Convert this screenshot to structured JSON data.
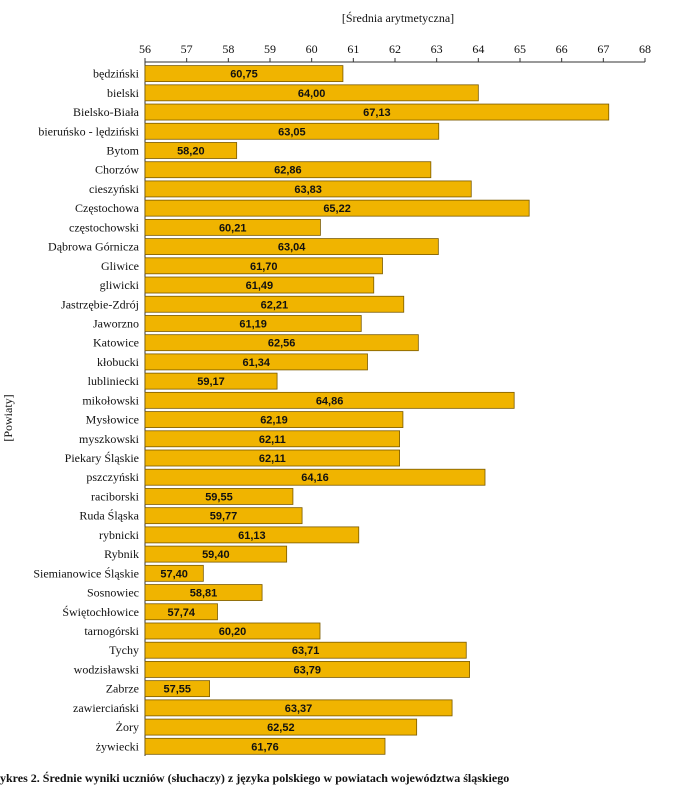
{
  "chart_data": {
    "type": "bar",
    "orientation": "horizontal",
    "title": "[Średnia arytmetyczna]",
    "xlabel": "[Średnia arytmetyczna]",
    "ylabel": "[Powiaty]",
    "xlim": [
      56,
      68
    ],
    "ticks": [
      56,
      57,
      58,
      59,
      60,
      61,
      62,
      63,
      64,
      65,
      66,
      67,
      68
    ],
    "categories": [
      "będziński",
      "bielski",
      "Bielsko-Biała",
      "bieruńsko - lędziński",
      "Bytom",
      "Chorzów",
      "cieszyński",
      "Częstochowa",
      "częstochowski",
      "Dąbrowa Górnicza",
      "Gliwice",
      "gliwicki",
      "Jastrzębie-Zdrój",
      "Jaworzno",
      "Katowice",
      "kłobucki",
      "lubliniecki",
      "mikołowski",
      "Mysłowice",
      "myszkowski",
      "Piekary Śląskie",
      "pszczyński",
      "raciborski",
      "Ruda Śląska",
      "rybnicki",
      "Rybnik",
      "Siemianowice Śląskie",
      "Sosnowiec",
      "Świętochłowice",
      "tarnogórski",
      "Tychy",
      "wodzisławski",
      "Zabrze",
      "zawierciański",
      "Żory",
      "żywiecki"
    ],
    "values": [
      60.75,
      64.0,
      67.13,
      63.05,
      58.2,
      62.86,
      63.83,
      65.22,
      60.21,
      63.04,
      61.7,
      61.49,
      62.21,
      61.19,
      62.56,
      61.34,
      59.17,
      64.86,
      62.19,
      62.11,
      62.11,
      64.16,
      59.55,
      59.77,
      61.13,
      59.4,
      57.4,
      58.81,
      57.74,
      60.2,
      63.71,
      63.79,
      57.55,
      63.37,
      62.52,
      61.76
    ],
    "value_labels": [
      "60,75",
      "64,00",
      "67,13",
      "63,05",
      "58,20",
      "62,86",
      "63,83",
      "65,22",
      "60,21",
      "63,04",
      "61,70",
      "61,49",
      "62,21",
      "61,19",
      "62,56",
      "61,34",
      "59,17",
      "64,86",
      "62,19",
      "62,11",
      "62,11",
      "64,16",
      "59,55",
      "59,77",
      "61,13",
      "59,40",
      "57,40",
      "58,81",
      "57,74",
      "60,20",
      "63,71",
      "63,79",
      "57,55",
      "63,37",
      "62,52",
      "61,76"
    ],
    "bar_color": "#f0b400",
    "legend": "none",
    "grid": false
  },
  "caption": "ykres 2. Średnie wyniki uczniów (słuchaczy) z języka polskiego w powiatach województwa śląskiego"
}
